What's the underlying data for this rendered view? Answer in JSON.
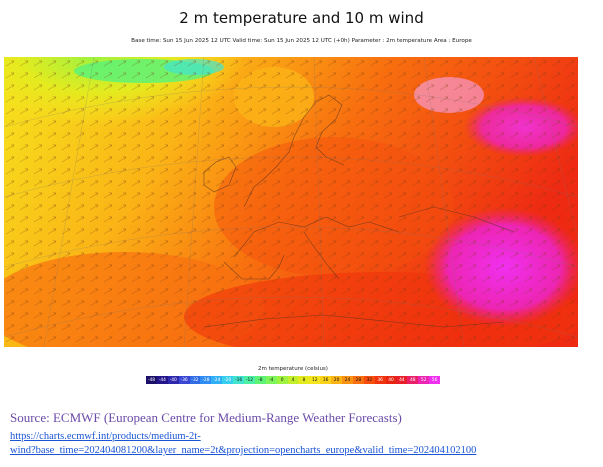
{
  "header": {
    "title": "2 m temperature and 10 m wind",
    "subtitle": "Base time: Sun 15 Jun 2025 12 UTC Valid time: Sun 15 Jun 2025 12 UTC (+0h) Parameter : 2m temperature Area : Europe"
  },
  "legend": {
    "title": "2m temperature (celsius)",
    "ticks": [
      "-48",
      "-44",
      "-40",
      "-36",
      "-32",
      "-28",
      "-24",
      "-20",
      "-16",
      "-12",
      "-8",
      "-4",
      "0",
      "4",
      "8",
      "12",
      "16",
      "20",
      "24",
      "28",
      "32",
      "36",
      "40",
      "44",
      "48",
      "52",
      "56"
    ],
    "colors": [
      "#1b0f6a",
      "#24148a",
      "#2d28ad",
      "#3a47d4",
      "#2f6ce6",
      "#2f8cf4",
      "#2fb0f6",
      "#36cfee",
      "#43e4cf",
      "#4cf0a5",
      "#5ef276",
      "#7ef55a",
      "#9ff23f",
      "#c3ee2c",
      "#e3eb1f",
      "#f4e51e",
      "#fad21a",
      "#fbb416",
      "#fb9312",
      "#f8700f",
      "#f54e0d",
      "#f0330c",
      "#e8230f",
      "#e81f2a",
      "#ea1f6a",
      "#ed25b3",
      "#f030f0"
    ]
  },
  "source": {
    "text": "Source: ECMWF (European Centre for Medium-Range Weather Forecasts)",
    "link_line1": "https://charts.ecmwf.int/products/medium-2t-",
    "link_line2": "wind?base_time=202404081200&layer_name=2t&projection=opencharts_europe&valid_time=202404102100"
  }
}
